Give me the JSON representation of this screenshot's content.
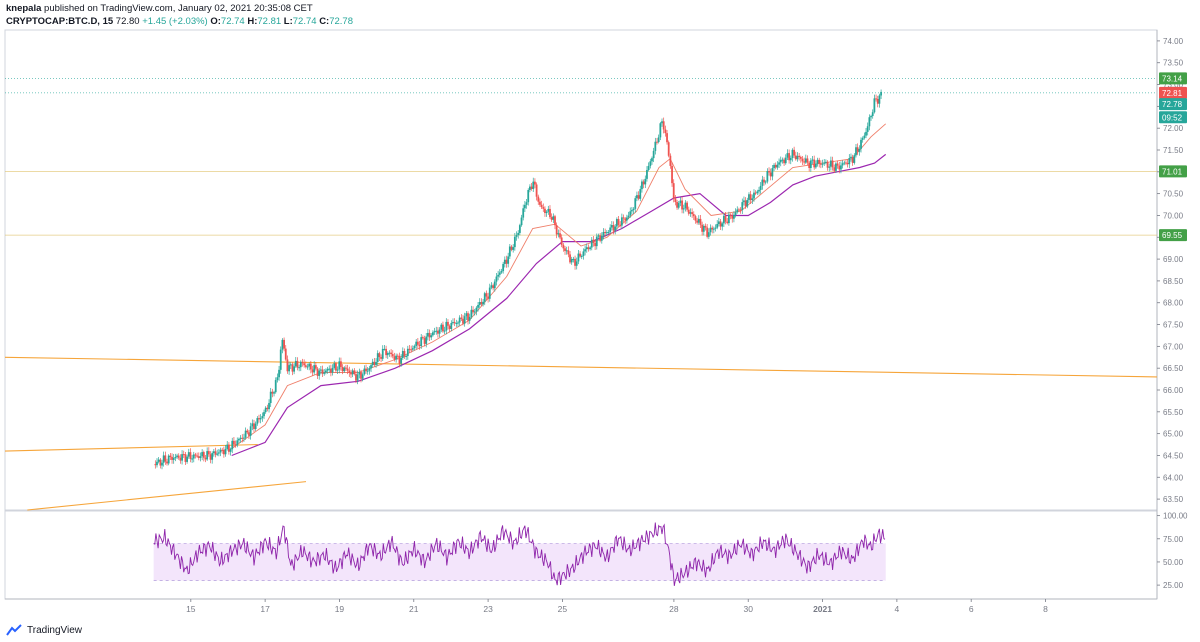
{
  "header": {
    "user": "knepala",
    "published": "published on TradingView.com, January 02, 2021 20:35:08 CET",
    "symbol": "CRYPTOCAP:BTC.D, 15",
    "last": "72.80",
    "change": "+1.45 (+2.03%)",
    "o_label": "O:",
    "o_value": "72.74",
    "h_label": "H:",
    "h_value": "72.81",
    "l_label": "L:",
    "l_value": "72.74",
    "c_label": "C:",
    "c_value": "72.78"
  },
  "footer": {
    "brand": "TradingView"
  },
  "colors": {
    "up": "#26a69a",
    "down": "#ef5350",
    "ema": "#ef7f6a",
    "sma": "#9c27b0",
    "trendline": "#f6a53a",
    "rsi": "#8e24aa",
    "rsi_band": "#f3e5fb",
    "hline_teal": "#26a69a",
    "hline_gold": "#e0c36a",
    "badge_green": "#43a047",
    "badge_red": "#ef5350",
    "badge_teal": "#26a69a"
  },
  "chart_data": {
    "type": "candlestick",
    "title": "",
    "ylim": [
      63.25,
      74.25
    ],
    "y_ticks": [
      "63.50",
      "64.00",
      "64.50",
      "65.00",
      "65.50",
      "66.00",
      "66.50",
      "67.00",
      "67.50",
      "68.00",
      "68.50",
      "69.00",
      "69.50",
      "70.00",
      "70.50",
      "71.00",
      "71.50",
      "72.00",
      "72.50",
      "73.00",
      "73.50",
      "74.00"
    ],
    "x_ticks": [
      {
        "label": "15",
        "t": 15
      },
      {
        "label": "17",
        "t": 17
      },
      {
        "label": "19",
        "t": 19
      },
      {
        "label": "21",
        "t": 21
      },
      {
        "label": "23",
        "t": 23
      },
      {
        "label": "25",
        "t": 25
      },
      {
        "label": "28",
        "t": 28
      },
      {
        "label": "30",
        "t": 30
      },
      {
        "label": "2021",
        "t": 32
      },
      {
        "label": "4",
        "t": 34
      },
      {
        "label": "6",
        "t": 36
      },
      {
        "label": "8",
        "t": 38
      }
    ],
    "price_path": [
      [
        14.0,
        64.3
      ],
      [
        14.5,
        64.45
      ],
      [
        15.5,
        64.5
      ],
      [
        16.0,
        64.65
      ],
      [
        16.5,
        65.0
      ],
      [
        17.0,
        65.5
      ],
      [
        17.35,
        66.3
      ],
      [
        17.45,
        67.2
      ],
      [
        17.6,
        66.5
      ],
      [
        18.0,
        66.6
      ],
      [
        18.5,
        66.4
      ],
      [
        19.0,
        66.55
      ],
      [
        19.5,
        66.3
      ],
      [
        19.8,
        66.5
      ],
      [
        20.2,
        66.9
      ],
      [
        20.6,
        66.7
      ],
      [
        21.0,
        67.0
      ],
      [
        21.5,
        67.3
      ],
      [
        22.0,
        67.5
      ],
      [
        22.5,
        67.7
      ],
      [
        23.0,
        68.2
      ],
      [
        23.5,
        69.0
      ],
      [
        23.8,
        69.6
      ],
      [
        24.0,
        70.3
      ],
      [
        24.2,
        70.8
      ],
      [
        24.4,
        70.2
      ],
      [
        24.7,
        70.0
      ],
      [
        25.0,
        69.3
      ],
      [
        25.3,
        68.9
      ],
      [
        25.6,
        69.2
      ],
      [
        26.0,
        69.5
      ],
      [
        26.3,
        69.7
      ],
      [
        26.8,
        70.0
      ],
      [
        27.2,
        70.8
      ],
      [
        27.5,
        71.6
      ],
      [
        27.7,
        72.2
      ],
      [
        27.9,
        71.2
      ],
      [
        28.0,
        70.3
      ],
      [
        28.3,
        70.2
      ],
      [
        28.6,
        69.9
      ],
      [
        28.9,
        69.6
      ],
      [
        29.2,
        69.8
      ],
      [
        29.6,
        70.0
      ],
      [
        29.9,
        70.3
      ],
      [
        30.2,
        70.5
      ],
      [
        30.5,
        70.9
      ],
      [
        30.8,
        71.2
      ],
      [
        31.2,
        71.4
      ],
      [
        31.6,
        71.2
      ],
      [
        32.0,
        71.2
      ],
      [
        32.4,
        71.1
      ],
      [
        32.8,
        71.3
      ],
      [
        33.0,
        71.6
      ],
      [
        33.2,
        72.0
      ],
      [
        33.4,
        72.6
      ],
      [
        33.6,
        72.78
      ]
    ],
    "ema_path": [
      [
        16.0,
        64.6
      ],
      [
        17.0,
        65.2
      ],
      [
        17.6,
        66.1
      ],
      [
        18.5,
        66.4
      ],
      [
        19.5,
        66.4
      ],
      [
        20.5,
        66.7
      ],
      [
        21.5,
        67.1
      ],
      [
        22.5,
        67.6
      ],
      [
        23.5,
        68.6
      ],
      [
        24.2,
        69.7
      ],
      [
        24.8,
        69.8
      ],
      [
        25.5,
        69.3
      ],
      [
        26.2,
        69.5
      ],
      [
        27.0,
        70.1
      ],
      [
        27.6,
        71.1
      ],
      [
        27.9,
        71.3
      ],
      [
        28.3,
        70.6
      ],
      [
        29.0,
        70.0
      ],
      [
        29.8,
        70.1
      ],
      [
        30.5,
        70.6
      ],
      [
        31.2,
        71.1
      ],
      [
        32.0,
        71.2
      ],
      [
        32.8,
        71.3
      ],
      [
        33.3,
        71.8
      ],
      [
        33.7,
        72.1
      ]
    ],
    "sma_path": [
      [
        16.1,
        64.5
      ],
      [
        17.0,
        64.8
      ],
      [
        17.6,
        65.6
      ],
      [
        18.5,
        66.1
      ],
      [
        19.5,
        66.2
      ],
      [
        20.5,
        66.5
      ],
      [
        21.5,
        66.9
      ],
      [
        22.5,
        67.4
      ],
      [
        23.5,
        68.1
      ],
      [
        24.3,
        68.9
      ],
      [
        25.0,
        69.4
      ],
      [
        25.8,
        69.4
      ],
      [
        26.6,
        69.7
      ],
      [
        27.4,
        70.1
      ],
      [
        28.0,
        70.4
      ],
      [
        28.7,
        70.5
      ],
      [
        29.4,
        70.0
      ],
      [
        30.0,
        70.0
      ],
      [
        30.6,
        70.3
      ],
      [
        31.2,
        70.7
      ],
      [
        31.8,
        70.9
      ],
      [
        32.4,
        71.0
      ],
      [
        33.0,
        71.1
      ],
      [
        33.4,
        71.2
      ],
      [
        33.7,
        71.4
      ]
    ],
    "trendlines": [
      {
        "from": [
          10.0,
          66.75
        ],
        "to": [
          41.0,
          66.3
        ]
      },
      {
        "from": [
          10.0,
          64.6
        ],
        "to": [
          16.8,
          64.75
        ]
      },
      {
        "from": [
          10.6,
          63.25
        ],
        "to": [
          18.1,
          63.9
        ]
      }
    ],
    "hlines": [
      {
        "y": 73.14,
        "style": "teal-dotted"
      },
      {
        "y": 72.81,
        "style": "teal-dotted"
      },
      {
        "y": 71.01,
        "style": "gold"
      },
      {
        "y": 69.55,
        "style": "gold"
      }
    ],
    "price_badges": [
      {
        "label": "73.14",
        "y": 73.14,
        "color": "badge_green"
      },
      {
        "label": "72.81",
        "y": 72.81,
        "color": "badge_red"
      },
      {
        "label": "72.78",
        "y": 72.55,
        "color": "badge_teal"
      },
      {
        "label": "09:52",
        "y": 72.25,
        "color": "badge_teal"
      },
      {
        "label": "71.01",
        "y": 71.01,
        "color": "badge_green"
      },
      {
        "label": "69.55",
        "y": 69.55,
        "color": "badge_green"
      }
    ],
    "rsi": {
      "ylim": [
        10,
        105
      ],
      "y_ticks": [
        "25.00",
        "50.00",
        "75.00",
        "100.00"
      ],
      "upper": 70,
      "lower": 30,
      "values": [
        [
          14.0,
          72
        ],
        [
          14.3,
          76
        ],
        [
          14.6,
          58
        ],
        [
          14.9,
          40
        ],
        [
          15.2,
          60
        ],
        [
          15.5,
          68
        ],
        [
          15.8,
          50
        ],
        [
          16.1,
          62
        ],
        [
          16.4,
          70
        ],
        [
          16.7,
          55
        ],
        [
          17.0,
          72
        ],
        [
          17.3,
          60
        ],
        [
          17.5,
          88
        ],
        [
          17.7,
          45
        ],
        [
          18.0,
          62
        ],
        [
          18.3,
          50
        ],
        [
          18.6,
          58
        ],
        [
          18.9,
          42
        ],
        [
          19.2,
          60
        ],
        [
          19.5,
          45
        ],
        [
          19.8,
          68
        ],
        [
          20.1,
          56
        ],
        [
          20.4,
          72
        ],
        [
          20.7,
          48
        ],
        [
          21.0,
          64
        ],
        [
          21.3,
          50
        ],
        [
          21.6,
          70
        ],
        [
          21.9,
          55
        ],
        [
          22.2,
          72
        ],
        [
          22.5,
          60
        ],
        [
          22.8,
          78
        ],
        [
          23.1,
          62
        ],
        [
          23.4,
          84
        ],
        [
          23.7,
          70
        ],
        [
          24.0,
          86
        ],
        [
          24.3,
          60
        ],
        [
          24.6,
          50
        ],
        [
          24.8,
          30
        ],
        [
          25.0,
          35
        ],
        [
          25.3,
          44
        ],
        [
          25.6,
          60
        ],
        [
          25.9,
          68
        ],
        [
          26.2,
          54
        ],
        [
          26.5,
          76
        ],
        [
          26.8,
          62
        ],
        [
          27.1,
          72
        ],
        [
          27.4,
          80
        ],
        [
          27.7,
          88
        ],
        [
          27.9,
          55
        ],
        [
          28.0,
          30
        ],
        [
          28.3,
          38
        ],
        [
          28.6,
          50
        ],
        [
          28.9,
          40
        ],
        [
          29.2,
          62
        ],
        [
          29.5,
          56
        ],
        [
          29.8,
          70
        ],
        [
          30.1,
          58
        ],
        [
          30.4,
          72
        ],
        [
          30.7,
          62
        ],
        [
          31.0,
          75
        ],
        [
          31.3,
          60
        ],
        [
          31.6,
          44
        ],
        [
          31.9,
          58
        ],
        [
          32.2,
          48
        ],
        [
          32.5,
          62
        ],
        [
          32.8,
          52
        ],
        [
          33.1,
          74
        ],
        [
          33.3,
          66
        ],
        [
          33.5,
          80
        ],
        [
          33.7,
          76
        ]
      ]
    }
  }
}
